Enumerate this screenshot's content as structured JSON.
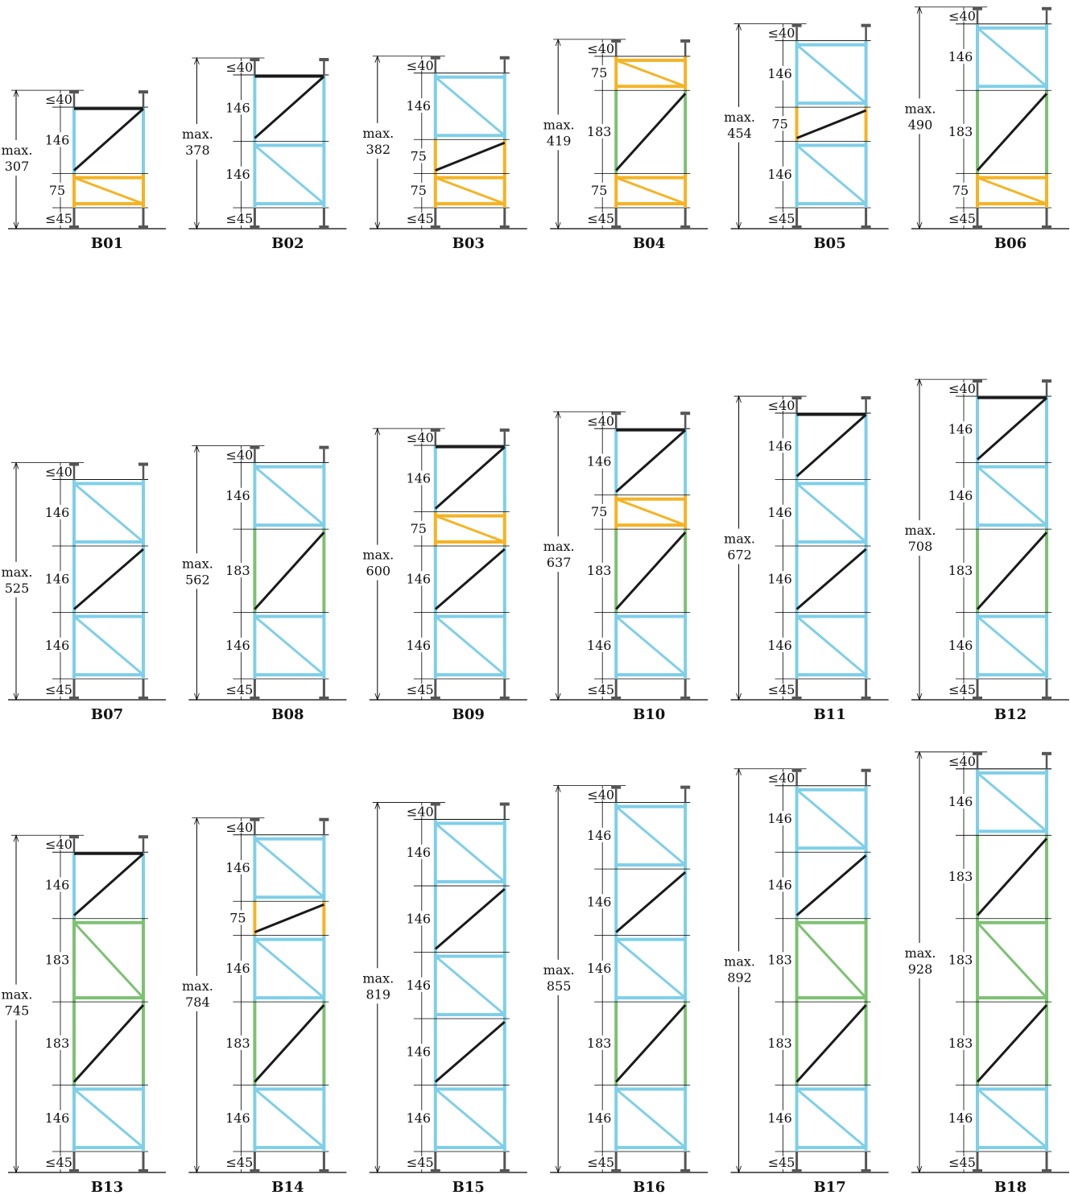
{
  "labels": {
    "max": "max.",
    "top_clearance": "≤40",
    "bottom_clearance": "≤45"
  },
  "colors": {
    "frame_146": "#7fcfe8",
    "frame_183": "#7dc173",
    "frame_75": "#f5b324",
    "brace": "#1a1a1a",
    "line": "#000000"
  },
  "configurations": [
    {
      "name": "B01",
      "total": "307",
      "sections": [
        {
          "h": "146",
          "type": "blk-d",
          "fill": "c146"
        },
        {
          "h": "75",
          "type": "x",
          "fill": "c75"
        }
      ]
    },
    {
      "name": "B02",
      "total": "378",
      "sections": [
        {
          "h": "146",
          "type": "blk-d",
          "fill": "c146"
        },
        {
          "h": "146",
          "type": "x",
          "fill": "c146"
        }
      ]
    },
    {
      "name": "B03",
      "total": "382",
      "sections": [
        {
          "h": "146",
          "type": "x",
          "fill": "c146"
        },
        {
          "h": "75",
          "type": "d",
          "fill": "c75"
        },
        {
          "h": "75",
          "type": "x",
          "fill": "c75"
        }
      ]
    },
    {
      "name": "B04",
      "total": "419",
      "sections": [
        {
          "h": "75",
          "type": "x",
          "fill": "c75"
        },
        {
          "h": "183",
          "type": "d",
          "fill": "c183"
        },
        {
          "h": "75",
          "type": "x",
          "fill": "c75"
        }
      ]
    },
    {
      "name": "B05",
      "total": "454",
      "sections": [
        {
          "h": "146",
          "type": "x",
          "fill": "c146"
        },
        {
          "h": "75",
          "type": "d",
          "fill": "c75"
        },
        {
          "h": "146",
          "type": "x",
          "fill": "c146"
        }
      ]
    },
    {
      "name": "B06",
      "total": "490",
      "sections": [
        {
          "h": "146",
          "type": "x",
          "fill": "c146"
        },
        {
          "h": "183",
          "type": "d",
          "fill": "c183"
        },
        {
          "h": "75",
          "type": "x",
          "fill": "c75"
        }
      ]
    },
    {
      "name": "B07",
      "total": "525",
      "sections": [
        {
          "h": "146",
          "type": "x",
          "fill": "c146"
        },
        {
          "h": "146",
          "type": "d",
          "fill": "c146"
        },
        {
          "h": "146",
          "type": "x",
          "fill": "c146"
        }
      ]
    },
    {
      "name": "B08",
      "total": "562",
      "sections": [
        {
          "h": "146",
          "type": "x",
          "fill": "c146"
        },
        {
          "h": "183",
          "type": "d",
          "fill": "c183"
        },
        {
          "h": "146",
          "type": "x",
          "fill": "c146"
        }
      ]
    },
    {
      "name": "B09",
      "total": "600",
      "sections": [
        {
          "h": "146",
          "type": "blk-d",
          "fill": "c146"
        },
        {
          "h": "75",
          "type": "x",
          "fill": "c75"
        },
        {
          "h": "146",
          "type": "d",
          "fill": "c146"
        },
        {
          "h": "146",
          "type": "x",
          "fill": "c146"
        }
      ]
    },
    {
      "name": "B10",
      "total": "637",
      "sections": [
        {
          "h": "146",
          "type": "blk-d",
          "fill": "c146"
        },
        {
          "h": "75",
          "type": "x",
          "fill": "c75"
        },
        {
          "h": "183",
          "type": "d",
          "fill": "c183"
        },
        {
          "h": "146",
          "type": "x",
          "fill": "c146"
        }
      ]
    },
    {
      "name": "B11",
      "total": "672",
      "sections": [
        {
          "h": "146",
          "type": "blk-d",
          "fill": "c146"
        },
        {
          "h": "146",
          "type": "x",
          "fill": "c146"
        },
        {
          "h": "146",
          "type": "d",
          "fill": "c146"
        },
        {
          "h": "146",
          "type": "x",
          "fill": "c146"
        }
      ]
    },
    {
      "name": "B12",
      "total": "708",
      "sections": [
        {
          "h": "146",
          "type": "blk-d",
          "fill": "c146"
        },
        {
          "h": "146",
          "type": "x",
          "fill": "c146"
        },
        {
          "h": "183",
          "type": "d",
          "fill": "c183"
        },
        {
          "h": "146",
          "type": "x",
          "fill": "c146"
        }
      ]
    },
    {
      "name": "B13",
      "total": "745",
      "sections": [
        {
          "h": "146",
          "type": "blk-d",
          "fill": "c146"
        },
        {
          "h": "183",
          "type": "x",
          "fill": "c183"
        },
        {
          "h": "183",
          "type": "d",
          "fill": "c183"
        },
        {
          "h": "146",
          "type": "x",
          "fill": "c146"
        }
      ]
    },
    {
      "name": "B14",
      "total": "784",
      "sections": [
        {
          "h": "146",
          "type": "x",
          "fill": "c146"
        },
        {
          "h": "75",
          "type": "d",
          "fill": "c75"
        },
        {
          "h": "146",
          "type": "x",
          "fill": "c146"
        },
        {
          "h": "183",
          "type": "d",
          "fill": "c183"
        },
        {
          "h": "146",
          "type": "x",
          "fill": "c146"
        }
      ]
    },
    {
      "name": "B15",
      "total": "819",
      "sections": [
        {
          "h": "146",
          "type": "x",
          "fill": "c146"
        },
        {
          "h": "146",
          "type": "d",
          "fill": "c146"
        },
        {
          "h": "146",
          "type": "x",
          "fill": "c146"
        },
        {
          "h": "146",
          "type": "d",
          "fill": "c146"
        },
        {
          "h": "146",
          "type": "x",
          "fill": "c146"
        }
      ]
    },
    {
      "name": "B16",
      "total": "855",
      "sections": [
        {
          "h": "146",
          "type": "x",
          "fill": "c146"
        },
        {
          "h": "146",
          "type": "d",
          "fill": "c146"
        },
        {
          "h": "146",
          "type": "x",
          "fill": "c146"
        },
        {
          "h": "183",
          "type": "d",
          "fill": "c183"
        },
        {
          "h": "146",
          "type": "x",
          "fill": "c146"
        }
      ]
    },
    {
      "name": "B17",
      "total": "892",
      "sections": [
        {
          "h": "146",
          "type": "x",
          "fill": "c146"
        },
        {
          "h": "146",
          "type": "d",
          "fill": "c146"
        },
        {
          "h": "183",
          "type": "x",
          "fill": "c183"
        },
        {
          "h": "183",
          "type": "d",
          "fill": "c183"
        },
        {
          "h": "146",
          "type": "x",
          "fill": "c146"
        }
      ]
    },
    {
      "name": "B18",
      "total": "928",
      "sections": [
        {
          "h": "146",
          "type": "x",
          "fill": "c146"
        },
        {
          "h": "183",
          "type": "d",
          "fill": "c183"
        },
        {
          "h": "183",
          "type": "x",
          "fill": "c183"
        },
        {
          "h": "183",
          "type": "d",
          "fill": "c183"
        },
        {
          "h": "146",
          "type": "x",
          "fill": "c146"
        }
      ]
    }
  ]
}
